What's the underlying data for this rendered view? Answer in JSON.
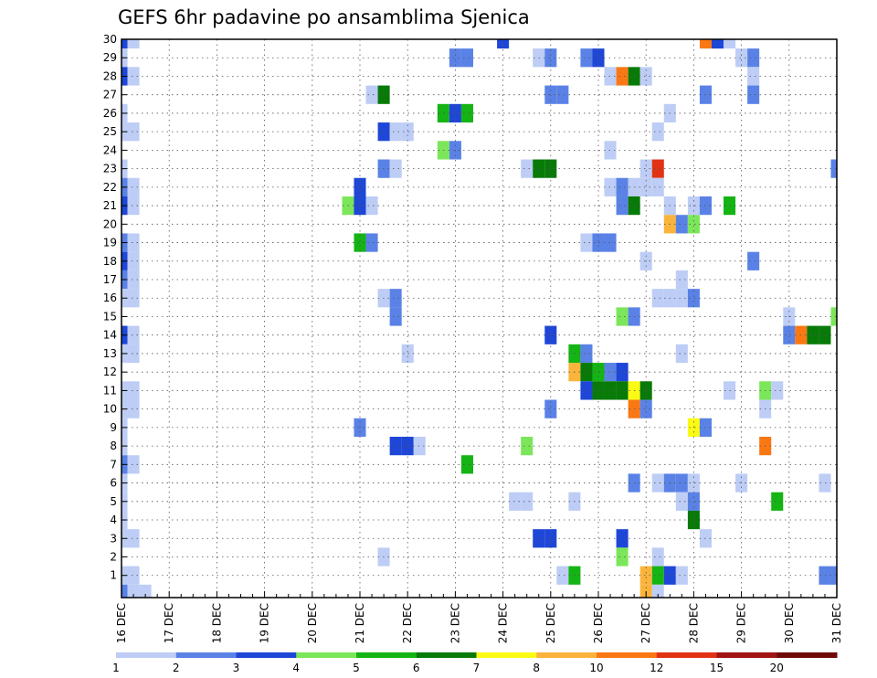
{
  "chart_data": {
    "type": "heatmap",
    "title": "GEFS 6hr padavine po ansamblima Sjenica",
    "xlabel": "",
    "ylabel": "",
    "x_ticks": [
      "16 DEC",
      "17 DEC",
      "18 DEC",
      "19 DEC",
      "20 DEC",
      "21 DEC",
      "22 DEC",
      "23 DEC",
      "24 DEC",
      "25 DEC",
      "26 DEC",
      "27 DEC",
      "28 DEC",
      "29 DEC",
      "30 DEC",
      "31 DEC"
    ],
    "xlim": [
      0,
      60
    ],
    "ylim": [
      0,
      30
    ],
    "y_ticks": [
      1,
      2,
      3,
      4,
      5,
      6,
      7,
      8,
      9,
      10,
      11,
      12,
      13,
      14,
      15,
      16,
      17,
      18,
      19,
      20,
      21,
      22,
      23,
      24,
      25,
      26,
      27,
      28,
      29,
      30
    ],
    "grid": true,
    "colorbar": {
      "boundaries": [
        "1",
        "2",
        "3",
        "4",
        "5",
        "6",
        "7",
        "8",
        "10",
        "12",
        "15",
        "20"
      ],
      "colors": [
        "#bdcdf5",
        "#5a82e6",
        "#1e46d7",
        "#7ce65a",
        "#14b414",
        "#087a08",
        "#fafa14",
        "#fab43c",
        "#fa7814",
        "#e13214",
        "#a01414",
        "#6e0a0a"
      ]
    },
    "cells": [
      [
        0,
        30,
        3
      ],
      [
        1,
        30,
        1
      ],
      [
        32,
        30,
        3
      ],
      [
        49,
        30,
        9
      ],
      [
        50,
        30,
        3
      ],
      [
        51,
        30,
        1
      ],
      [
        0,
        29,
        1
      ],
      [
        28,
        29,
        2
      ],
      [
        29,
        29,
        2
      ],
      [
        35,
        29,
        1
      ],
      [
        36,
        29,
        2
      ],
      [
        39,
        29,
        2
      ],
      [
        40,
        29,
        3
      ],
      [
        52,
        29,
        1
      ],
      [
        53,
        29,
        2
      ],
      [
        0,
        28,
        3
      ],
      [
        1,
        28,
        1
      ],
      [
        41,
        28,
        1
      ],
      [
        42,
        28,
        9
      ],
      [
        43,
        28,
        6
      ],
      [
        44,
        28,
        1
      ],
      [
        53,
        28,
        1
      ],
      [
        21,
        27,
        1
      ],
      [
        22,
        27,
        6
      ],
      [
        36,
        27,
        2
      ],
      [
        37,
        27,
        2
      ],
      [
        49,
        27,
        2
      ],
      [
        53,
        27,
        2
      ],
      [
        0,
        26,
        1
      ],
      [
        27,
        26,
        5
      ],
      [
        28,
        26,
        3
      ],
      [
        29,
        26,
        5
      ],
      [
        46,
        26,
        1
      ],
      [
        0,
        25,
        1
      ],
      [
        1,
        25,
        1
      ],
      [
        22,
        25,
        3
      ],
      [
        23,
        25,
        1
      ],
      [
        24,
        25,
        1
      ],
      [
        45,
        25,
        1
      ],
      [
        27,
        24,
        4
      ],
      [
        28,
        24,
        2
      ],
      [
        41,
        24,
        1
      ],
      [
        0,
        23,
        1
      ],
      [
        22,
        23,
        2
      ],
      [
        23,
        23,
        1
      ],
      [
        34,
        23,
        1
      ],
      [
        35,
        23,
        6
      ],
      [
        36,
        23,
        6
      ],
      [
        44,
        23,
        1
      ],
      [
        45,
        23,
        10
      ],
      [
        60,
        23,
        2
      ],
      [
        0,
        22,
        2
      ],
      [
        1,
        22,
        1
      ],
      [
        20,
        22,
        3
      ],
      [
        41,
        22,
        1
      ],
      [
        42,
        22,
        2
      ],
      [
        43,
        22,
        1
      ],
      [
        44,
        22,
        1
      ],
      [
        45,
        22,
        1
      ],
      [
        0,
        21,
        3
      ],
      [
        1,
        21,
        1
      ],
      [
        19,
        21,
        4
      ],
      [
        20,
        21,
        3
      ],
      [
        21,
        21,
        1
      ],
      [
        42,
        21,
        2
      ],
      [
        43,
        21,
        6
      ],
      [
        46,
        21,
        1
      ],
      [
        48,
        21,
        1
      ],
      [
        49,
        21,
        2
      ],
      [
        51,
        21,
        5
      ],
      [
        46,
        20,
        8
      ],
      [
        47,
        20,
        2
      ],
      [
        48,
        20,
        4
      ],
      [
        0,
        19,
        2
      ],
      [
        1,
        19,
        1
      ],
      [
        20,
        19,
        5
      ],
      [
        21,
        19,
        2
      ],
      [
        39,
        19,
        1
      ],
      [
        40,
        19,
        2
      ],
      [
        41,
        19,
        2
      ],
      [
        0,
        18,
        3
      ],
      [
        1,
        18,
        1
      ],
      [
        44,
        18,
        1
      ],
      [
        53,
        18,
        2
      ],
      [
        0,
        17,
        2
      ],
      [
        1,
        17,
        1
      ],
      [
        47,
        17,
        1
      ],
      [
        0,
        16,
        1
      ],
      [
        1,
        16,
        1
      ],
      [
        22,
        16,
        1
      ],
      [
        23,
        16,
        2
      ],
      [
        45,
        16,
        1
      ],
      [
        46,
        16,
        1
      ],
      [
        47,
        16,
        1
      ],
      [
        48,
        16,
        2
      ],
      [
        23,
        15,
        2
      ],
      [
        42,
        15,
        4
      ],
      [
        43,
        15,
        2
      ],
      [
        56,
        15,
        1
      ],
      [
        60,
        15,
        4
      ],
      [
        0,
        14,
        3
      ],
      [
        1,
        14,
        1
      ],
      [
        36,
        14,
        3
      ],
      [
        56,
        14,
        2
      ],
      [
        57,
        14,
        9
      ],
      [
        58,
        14,
        6
      ],
      [
        59,
        14,
        6
      ],
      [
        0,
        13,
        1
      ],
      [
        1,
        13,
        1
      ],
      [
        24,
        13,
        1
      ],
      [
        38,
        13,
        5
      ],
      [
        39,
        13,
        2
      ],
      [
        47,
        13,
        1
      ],
      [
        38,
        12,
        8
      ],
      [
        39,
        12,
        6
      ],
      [
        40,
        12,
        5
      ],
      [
        41,
        12,
        2
      ],
      [
        42,
        12,
        3
      ],
      [
        0,
        11,
        1
      ],
      [
        1,
        11,
        1
      ],
      [
        39,
        11,
        3
      ],
      [
        40,
        11,
        6
      ],
      [
        41,
        11,
        6
      ],
      [
        42,
        11,
        6
      ],
      [
        43,
        11,
        7
      ],
      [
        44,
        11,
        6
      ],
      [
        51,
        11,
        1
      ],
      [
        54,
        11,
        4
      ],
      [
        55,
        11,
        1
      ],
      [
        0,
        10,
        1
      ],
      [
        1,
        10,
        1
      ],
      [
        36,
        10,
        2
      ],
      [
        43,
        10,
        9
      ],
      [
        44,
        10,
        2
      ],
      [
        54,
        10,
        1
      ],
      [
        0,
        9,
        1
      ],
      [
        20,
        9,
        2
      ],
      [
        48,
        9,
        7
      ],
      [
        49,
        9,
        2
      ],
      [
        0,
        8,
        1
      ],
      [
        23,
        8,
        3
      ],
      [
        24,
        8,
        3
      ],
      [
        25,
        8,
        1
      ],
      [
        34,
        8,
        4
      ],
      [
        54,
        8,
        9
      ],
      [
        0,
        7,
        2
      ],
      [
        1,
        7,
        1
      ],
      [
        29,
        7,
        5
      ],
      [
        0,
        6,
        1
      ],
      [
        43,
        6,
        2
      ],
      [
        45,
        6,
        1
      ],
      [
        46,
        6,
        2
      ],
      [
        47,
        6,
        2
      ],
      [
        48,
        6,
        1
      ],
      [
        52,
        6,
        1
      ],
      [
        59,
        6,
        1
      ],
      [
        0,
        5,
        1
      ],
      [
        33,
        5,
        1
      ],
      [
        34,
        5,
        1
      ],
      [
        38,
        5,
        1
      ],
      [
        47,
        5,
        1
      ],
      [
        48,
        5,
        2
      ],
      [
        55,
        5,
        5
      ],
      [
        0,
        4,
        1
      ],
      [
        48,
        4,
        6
      ],
      [
        0,
        3,
        1
      ],
      [
        1,
        3,
        1
      ],
      [
        35,
        3,
        3
      ],
      [
        36,
        3,
        3
      ],
      [
        42,
        3,
        3
      ],
      [
        49,
        3,
        1
      ],
      [
        22,
        2,
        1
      ],
      [
        42,
        2,
        4
      ],
      [
        45,
        2,
        1
      ],
      [
        0,
        1,
        1
      ],
      [
        1,
        1,
        1
      ],
      [
        37,
        1,
        1
      ],
      [
        38,
        1,
        5
      ],
      [
        44,
        1,
        8
      ],
      [
        45,
        1,
        5
      ],
      [
        46,
        1,
        3
      ],
      [
        47,
        1,
        1
      ],
      [
        59,
        1,
        2
      ],
      [
        60,
        1,
        2
      ],
      [
        0,
        0,
        2
      ],
      [
        1,
        0,
        1
      ],
      [
        2,
        0,
        1
      ],
      [
        44,
        0,
        8
      ],
      [
        45,
        0,
        1
      ]
    ]
  }
}
